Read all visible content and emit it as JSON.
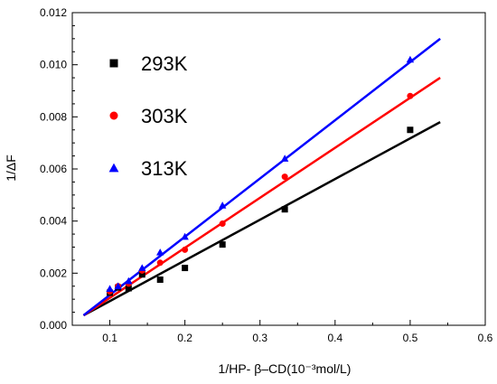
{
  "chart_data": {
    "type": "scatter",
    "xlabel": "1/HP- β–CD(10⁻³mol/L)",
    "ylabel": "1/ΔF",
    "xlim": [
      0.05,
      0.6
    ],
    "ylim": [
      0.0,
      0.012
    ],
    "x_ticks": [
      "0.1",
      "0.2",
      "0.3",
      "0.4",
      "0.5",
      "0.6"
    ],
    "y_ticks": [
      "0.000",
      "0.002",
      "0.004",
      "0.006",
      "0.008",
      "0.010",
      "0.012"
    ],
    "grid": false,
    "legend_position": "top-left",
    "series": [
      {
        "name": "293K",
        "color": "#000000",
        "marker": "square",
        "x": [
          0.1,
          0.111,
          0.125,
          0.143,
          0.167,
          0.2,
          0.25,
          0.333,
          0.5
        ],
        "y": [
          0.00125,
          0.00145,
          0.00142,
          0.00195,
          0.00175,
          0.0022,
          0.0031,
          0.00445,
          0.0075
        ],
        "fit": [
          [
            0.065,
            0.00038
          ],
          [
            0.54,
            0.0078
          ]
        ]
      },
      {
        "name": "303K",
        "color": "#ff0000",
        "marker": "circle",
        "x": [
          0.1,
          0.111,
          0.125,
          0.143,
          0.167,
          0.2,
          0.25,
          0.333,
          0.5
        ],
        "y": [
          0.0013,
          0.0015,
          0.0016,
          0.0021,
          0.0024,
          0.0029,
          0.0039,
          0.0057,
          0.0088
        ],
        "fit": [
          [
            0.065,
            0.00038
          ],
          [
            0.54,
            0.0095
          ]
        ]
      },
      {
        "name": "313K",
        "color": "#0000ff",
        "marker": "triangle",
        "x": [
          0.1,
          0.111,
          0.125,
          0.143,
          0.167,
          0.2,
          0.25,
          0.333,
          0.5
        ],
        "y": [
          0.0014,
          0.0015,
          0.0017,
          0.0022,
          0.0028,
          0.0034,
          0.0046,
          0.0064,
          0.0102
        ],
        "fit": [
          [
            0.065,
            0.00038
          ],
          [
            0.54,
            0.011
          ]
        ]
      }
    ]
  }
}
